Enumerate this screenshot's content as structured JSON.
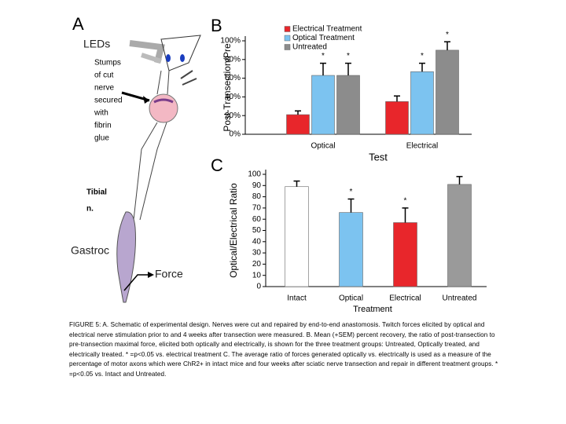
{
  "panels": {
    "a": "A",
    "b": "B",
    "c": "C"
  },
  "schematic": {
    "leds": "LEDs",
    "stumps": [
      "Stumps",
      "of cut",
      "nerve",
      "secured",
      "with",
      "fibrin",
      "glue"
    ],
    "tibial": [
      "Tibial",
      "n."
    ],
    "gastroc": "Gastroc",
    "force": "Force"
  },
  "chart_data": [
    {
      "type": "bar",
      "ylabel": "Post-Transection/Pre",
      "xlabel": "Test",
      "categories": [
        "Optical",
        "Electrical"
      ],
      "series": [
        {
          "name": "Electrical Treatment",
          "color": "#e8262b",
          "values": [
            21,
            35
          ],
          "errors": [
            4,
            6
          ],
          "significance": [
            null,
            null
          ]
        },
        {
          "name": "Optical Treatment",
          "color": "#7cc3f0",
          "values": [
            63,
            67
          ],
          "errors": [
            13,
            9
          ],
          "significance": [
            "*",
            "*"
          ]
        },
        {
          "name": "Untreated",
          "color": "#8c8c8c",
          "values": [
            63,
            90
          ],
          "errors": [
            13,
            9
          ],
          "significance": [
            "*",
            "*"
          ]
        }
      ],
      "ylim": [
        0,
        100
      ],
      "yticks": [
        {
          "value": 0,
          "label": "0%"
        },
        {
          "value": 20,
          "label": "20%"
        },
        {
          "value": 40,
          "label": "40%"
        },
        {
          "value": 60,
          "label": "60%"
        },
        {
          "value": 80,
          "label": "80%"
        },
        {
          "value": 100,
          "label": "100%"
        }
      ]
    },
    {
      "type": "bar",
      "ylabel": "Optical/Electrical Ratio",
      "xlabel": "Treatment",
      "categories": [
        "Intact",
        "Optical",
        "Electrical",
        "Untreated"
      ],
      "values": [
        89,
        66,
        57,
        91
      ],
      "errors": [
        5,
        12,
        13,
        7
      ],
      "colors": [
        "#ffffff",
        "#7cc3f0",
        "#e8262b",
        "#9a9a9a"
      ],
      "significance": [
        null,
        "*",
        "*",
        null
      ],
      "ylim": [
        0,
        100
      ],
      "yticks": [
        0,
        10,
        20,
        30,
        40,
        50,
        60,
        70,
        80,
        90,
        100
      ]
    }
  ],
  "caption": "FIGURE 5: A. Schematic of experimental design. Nerves were cut and repaired by end-to-end anastomosis. Twitch forces elicited by optical and electrical nerve stimulation prior to and 4 weeks after transection were measured. B. Mean (+SEM) percent recovery, the ratio of post-transection to pre-transection maximal force, elicited both optically and electrically, is shown for the three treatment groups: Untreated, Optically treated, and electrically treated. * =p<0.05 vs. electrical treatment C. The average ratio of forces generated optically vs. electrically is used as a measure of the percentage of motor axons which were ChR2+ in intact mice and four weeks after sciatic nerve transection and repair in different treatment groups. * =p<0.05 vs. Intact and Untreated."
}
